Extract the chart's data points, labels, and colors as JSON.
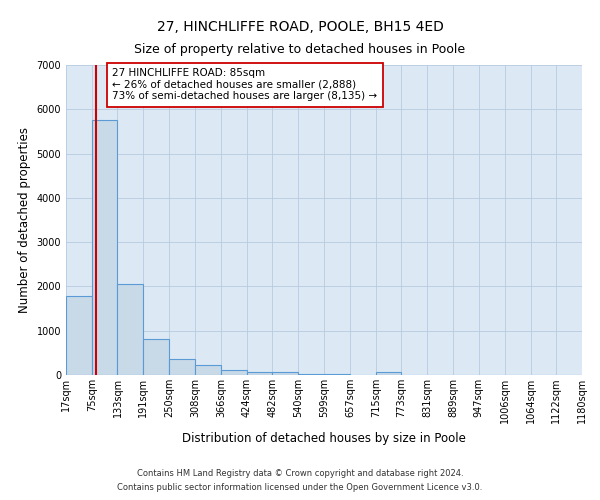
{
  "title_line1": "27, HINCHLIFFE ROAD, POOLE, BH15 4ED",
  "title_line2": "Size of property relative to detached houses in Poole",
  "xlabel": "Distribution of detached houses by size in Poole",
  "ylabel": "Number of detached properties",
  "bar_edges": [
    17,
    75,
    133,
    191,
    250,
    308,
    366,
    424,
    482,
    540,
    599,
    657,
    715,
    773,
    831,
    889,
    947,
    1006,
    1064,
    1122,
    1180
  ],
  "bar_heights": [
    1780,
    5750,
    2050,
    820,
    370,
    230,
    110,
    65,
    60,
    30,
    20,
    10,
    60,
    5,
    3,
    2,
    1,
    1,
    1,
    1
  ],
  "bar_color": "#c8d9e8",
  "bar_edgecolor": "#5b9bd5",
  "bar_linewidth": 0.8,
  "vline_x": 85,
  "vline_color": "#cc0000",
  "vline_linewidth": 1.5,
  "annotation_title": "27 HINCHLIFFE ROAD: 85sqm",
  "annotation_line1": "← 26% of detached houses are smaller (2,888)",
  "annotation_line2": "73% of semi-detached houses are larger (8,135) →",
  "annotation_box_edgecolor": "#cc0000",
  "annotation_box_facecolor": "#ffffff",
  "ylim": [
    0,
    7000
  ],
  "yticks": [
    0,
    1000,
    2000,
    3000,
    4000,
    5000,
    6000,
    7000
  ],
  "xlim": [
    17,
    1180
  ],
  "tick_labels": [
    "17sqm",
    "75sqm",
    "133sqm",
    "191sqm",
    "250sqm",
    "308sqm",
    "366sqm",
    "424sqm",
    "482sqm",
    "540sqm",
    "599sqm",
    "657sqm",
    "715sqm",
    "773sqm",
    "831sqm",
    "889sqm",
    "947sqm",
    "1006sqm",
    "1064sqm",
    "1122sqm",
    "1180sqm"
  ],
  "footer_line1": "Contains HM Land Registry data © Crown copyright and database right 2024.",
  "footer_line2": "Contains public sector information licensed under the Open Government Licence v3.0.",
  "background_color": "#ffffff",
  "plot_bg_color": "#dce9f5",
  "grid_color": "#b8cce0",
  "title_fontsize": 10,
  "subtitle_fontsize": 9,
  "axis_label_fontsize": 8.5,
  "tick_fontsize": 7,
  "footer_fontsize": 6,
  "annotation_fontsize": 7.5
}
